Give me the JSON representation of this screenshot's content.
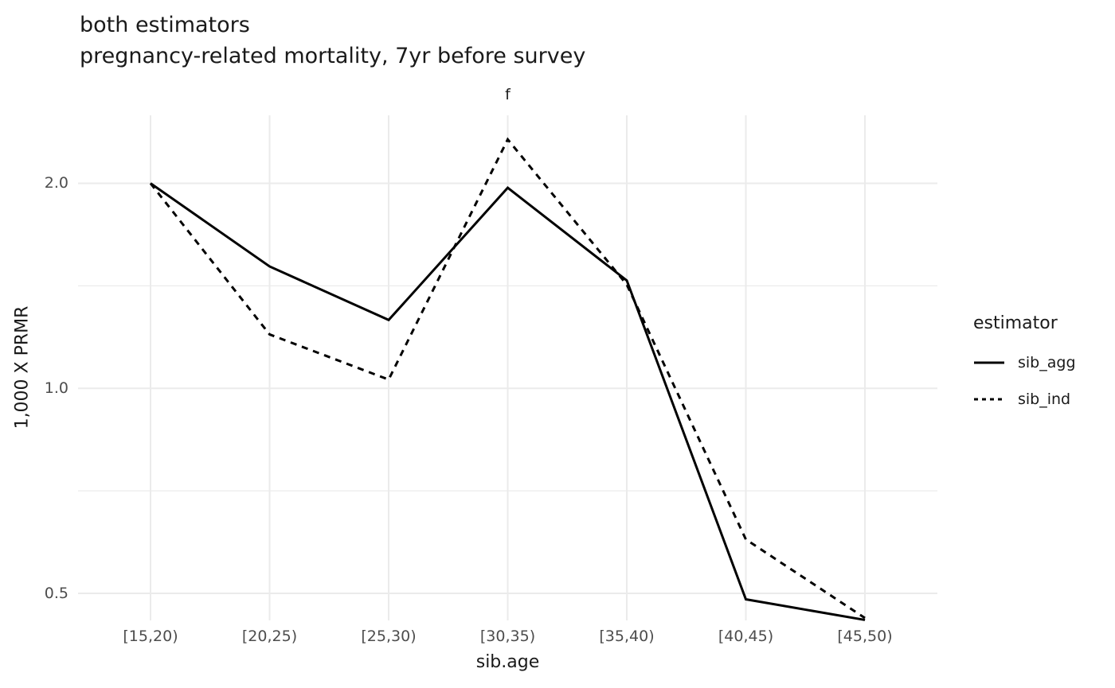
{
  "title": {
    "line1": "both estimators",
    "line2": "pregnancy-related mortality, 7yr before survey"
  },
  "chart_data": {
    "type": "line",
    "facet_label": "f",
    "xlabel": "sib.age",
    "ylabel": "1,000 X PRMR",
    "categories": [
      "[15,20)",
      "[20,25)",
      "[25,30)",
      "[30,35)",
      "[35,40)",
      "[40,45)",
      "[45,50)"
    ],
    "series": [
      {
        "name": "sib_agg",
        "linetype": "solid",
        "color": "#000000",
        "values": [
          2.0,
          1.51,
          1.26,
          1.97,
          1.44,
          0.49,
          0.457
        ]
      },
      {
        "name": "sib_ind",
        "linetype": "dashed",
        "color": "#000000",
        "values": [
          2.0,
          1.2,
          1.03,
          2.32,
          1.42,
          0.6,
          0.46
        ]
      }
    ],
    "y_scale": "log",
    "y_breaks": [
      0.5,
      1.0,
      2.0
    ],
    "y_break_labels": [
      "0.5",
      "1.0",
      "2.0"
    ],
    "y_minor_breaks": [
      0.7071,
      1.4142
    ],
    "ylim": [
      0.4563,
      2.5169
    ],
    "grid_on": true,
    "grid_color": "#EBEBEB",
    "legend_position": "right"
  },
  "legend": {
    "title": "estimator",
    "items": [
      {
        "label": "sib_agg",
        "linetype": "solid"
      },
      {
        "label": "sib_ind",
        "linetype": "dashed"
      }
    ]
  }
}
